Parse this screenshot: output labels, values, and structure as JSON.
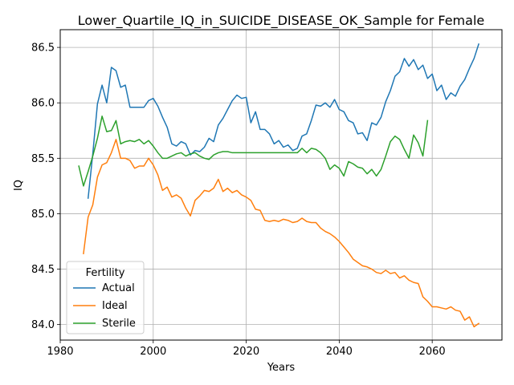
{
  "chart_data": {
    "type": "line",
    "title": "Lower_Quartile_IQ_in_SUICIDE_DISEASE_OK_Sample for Female",
    "xlabel": "Years",
    "ylabel": "IQ",
    "xlim": [
      1980,
      2075
    ],
    "ylim": [
      83.86,
      86.66
    ],
    "xticks": [
      1980,
      2000,
      2020,
      2040,
      2060
    ],
    "yticks": [
      84.0,
      84.5,
      85.0,
      85.5,
      86.0,
      86.5
    ],
    "ytick_labels": [
      "84.0",
      "84.5",
      "85.0",
      "85.5",
      "86.0",
      "86.5"
    ],
    "grid": true,
    "legend": {
      "title": "Fertility",
      "placement": "lower-left"
    },
    "series": [
      {
        "name": "Actual",
        "color": "#1f77b4",
        "x": [
          1986,
          1987,
          1988,
          1989,
          1990,
          1991,
          1992,
          1993,
          1994,
          1995,
          1996,
          1997,
          1998,
          1999,
          2000,
          2001,
          2002,
          2003,
          2004,
          2005,
          2006,
          2007,
          2008,
          2009,
          2010,
          2011,
          2012,
          2013,
          2014,
          2015,
          2016,
          2017,
          2018,
          2019,
          2020,
          2021,
          2022,
          2023,
          2024,
          2025,
          2026,
          2027,
          2028,
          2029,
          2030,
          2031,
          2032,
          2033,
          2034,
          2035,
          2036,
          2037,
          2038,
          2039,
          2040,
          2041,
          2042,
          2043,
          2044,
          2045,
          2046,
          2047,
          2048,
          2049,
          2050,
          2051,
          2052,
          2053,
          2054,
          2055,
          2056,
          2057,
          2058,
          2059,
          2060,
          2061,
          2062,
          2063,
          2064,
          2065,
          2066,
          2067,
          2068,
          2069,
          2070
        ],
        "values": [
          85.14,
          85.54,
          85.99,
          86.16,
          86.0,
          86.32,
          86.29,
          86.14,
          86.16,
          85.96,
          85.96,
          85.96,
          85.96,
          86.02,
          86.04,
          85.97,
          85.87,
          85.78,
          85.63,
          85.61,
          85.65,
          85.63,
          85.53,
          85.57,
          85.56,
          85.6,
          85.68,
          85.65,
          85.8,
          85.86,
          85.94,
          86.02,
          86.07,
          86.04,
          86.05,
          85.82,
          85.92,
          85.76,
          85.76,
          85.72,
          85.63,
          85.66,
          85.6,
          85.62,
          85.57,
          85.59,
          85.7,
          85.72,
          85.84,
          85.98,
          85.97,
          86.0,
          85.96,
          86.03,
          85.94,
          85.92,
          85.84,
          85.82,
          85.72,
          85.73,
          85.66,
          85.82,
          85.8,
          85.87,
          86.01,
          86.11,
          86.24,
          86.28,
          86.4,
          86.33,
          86.39,
          86.3,
          86.34,
          86.22,
          86.26,
          86.11,
          86.16,
          86.03,
          86.09,
          86.06,
          86.15,
          86.21,
          86.31,
          86.4,
          86.53
        ]
      },
      {
        "name": "Ideal",
        "color": "#ff7f0e",
        "x": [
          1985,
          1986,
          1987,
          1988,
          1989,
          1990,
          1991,
          1992,
          1993,
          1994,
          1995,
          1996,
          1997,
          1998,
          1999,
          2000,
          2001,
          2002,
          2003,
          2004,
          2005,
          2006,
          2007,
          2008,
          2009,
          2010,
          2011,
          2012,
          2013,
          2014,
          2015,
          2016,
          2017,
          2018,
          2019,
          2020,
          2021,
          2022,
          2023,
          2024,
          2025,
          2026,
          2027,
          2028,
          2029,
          2030,
          2031,
          2032,
          2033,
          2034,
          2035,
          2036,
          2037,
          2038,
          2039,
          2040,
          2041,
          2042,
          2043,
          2044,
          2045,
          2046,
          2047,
          2048,
          2049,
          2050,
          2051,
          2052,
          2053,
          2054,
          2055,
          2056,
          2057,
          2058,
          2059,
          2060,
          2061,
          2062,
          2063,
          2064,
          2065,
          2066,
          2067,
          2068,
          2069,
          2070
        ],
        "values": [
          84.64,
          84.97,
          85.08,
          85.33,
          85.44,
          85.46,
          85.55,
          85.67,
          85.5,
          85.5,
          85.48,
          85.41,
          85.43,
          85.43,
          85.5,
          85.44,
          85.35,
          85.21,
          85.24,
          85.15,
          85.17,
          85.14,
          85.05,
          84.98,
          85.12,
          85.16,
          85.21,
          85.2,
          85.23,
          85.31,
          85.2,
          85.23,
          85.19,
          85.21,
          85.17,
          85.15,
          85.12,
          85.04,
          85.03,
          84.94,
          84.93,
          84.94,
          84.93,
          84.95,
          84.94,
          84.92,
          84.93,
          84.96,
          84.93,
          84.92,
          84.92,
          84.87,
          84.84,
          84.82,
          84.79,
          84.75,
          84.7,
          84.65,
          84.59,
          84.56,
          84.53,
          84.52,
          84.5,
          84.47,
          84.46,
          84.49,
          84.46,
          84.47,
          84.42,
          84.44,
          84.4,
          84.38,
          84.37,
          84.25,
          84.21,
          84.16,
          84.16,
          84.15,
          84.14,
          84.16,
          84.13,
          84.12,
          84.04,
          84.07,
          83.98,
          84.01
        ]
      },
      {
        "name": "Sterile",
        "color": "#2ca02c",
        "x": [
          1984,
          1985,
          1986,
          1987,
          1988,
          1989,
          1990,
          1991,
          1992,
          1993,
          1994,
          1995,
          1996,
          1997,
          1998,
          1999,
          2000,
          2001,
          2002,
          2003,
          2004,
          2005,
          2006,
          2007,
          2008,
          2009,
          2010,
          2011,
          2012,
          2013,
          2014,
          2015,
          2016,
          2017,
          2018,
          2019,
          2020,
          2021,
          2022,
          2023,
          2024,
          2025,
          2026,
          2027,
          2028,
          2029,
          2030,
          2031,
          2032,
          2033,
          2034,
          2035,
          2036,
          2037,
          2038,
          2039,
          2040,
          2041,
          2042,
          2043,
          2044,
          2045,
          2046,
          2047,
          2048,
          2049,
          2050,
          2051,
          2052,
          2053,
          2054,
          2055,
          2056,
          2057,
          2058,
          2059
        ],
        "values": [
          85.43,
          85.25,
          85.38,
          85.52,
          85.68,
          85.88,
          85.74,
          85.75,
          85.84,
          85.63,
          85.65,
          85.66,
          85.65,
          85.67,
          85.63,
          85.66,
          85.61,
          85.55,
          85.5,
          85.5,
          85.52,
          85.54,
          85.55,
          85.52,
          85.54,
          85.55,
          85.52,
          85.5,
          85.49,
          85.53,
          85.55,
          85.56,
          85.56,
          85.55,
          85.55,
          85.55,
          85.55,
          85.55,
          85.55,
          85.55,
          85.55,
          85.55,
          85.55,
          85.55,
          85.55,
          85.55,
          85.55,
          85.55,
          85.59,
          85.55,
          85.59,
          85.58,
          85.55,
          85.5,
          85.4,
          85.44,
          85.41,
          85.34,
          85.47,
          85.45,
          85.42,
          85.41,
          85.36,
          85.4,
          85.34,
          85.4,
          85.52,
          85.65,
          85.7,
          85.67,
          85.58,
          85.5,
          85.71,
          85.64,
          85.52,
          85.84
        ]
      }
    ]
  }
}
